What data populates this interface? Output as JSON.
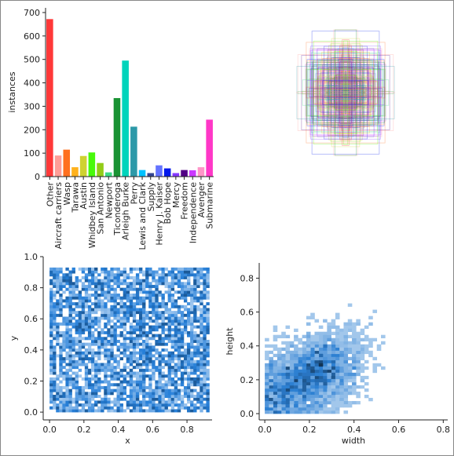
{
  "chart_data": [
    {
      "type": "bar",
      "y_label": "instances",
      "categories": [
        "Other",
        "Aircraft carriers",
        "Wasp",
        "Tarawa",
        "Austin",
        "Whidbey Island",
        "San Antonio",
        "Newport",
        "Ticonderoga",
        "Arleigh Burke",
        "Perry",
        "Lewis and Clark",
        "Supply",
        "Henry J. Kaiser",
        "Bob Hope",
        "Mercy",
        "Freedom",
        "Independence",
        "Avenger",
        "Submarine"
      ],
      "values": [
        672,
        90,
        115,
        40,
        88,
        103,
        58,
        18,
        335,
        495,
        213,
        28,
        15,
        48,
        35,
        15,
        28,
        27,
        40,
        243
      ],
      "colors": [
        "#ff3838",
        "#ff9d97",
        "#ff701f",
        "#ffb21d",
        "#cfd231",
        "#48f90a",
        "#92cc17",
        "#3ddb86",
        "#1a9334",
        "#00d4bb",
        "#2c99a8",
        "#00c2ff",
        "#344593",
        "#6473ff",
        "#0018ec",
        "#8438ff",
        "#520085",
        "#cb38ff",
        "#ff95c8",
        "#ff37c7"
      ],
      "ylim": [
        0,
        720
      ],
      "yticks": [
        0,
        100,
        200,
        300,
        400,
        500,
        600,
        700
      ]
    },
    {
      "type": "hist2d",
      "x_label": "x",
      "y_label": "y",
      "xlim": [
        -0.037,
        0.946
      ],
      "ylim": [
        -0.05,
        1.0
      ],
      "xticks": [
        {
          "value": 0,
          "label": "0.0"
        },
        {
          "value": 0.2,
          "label": "0.2"
        },
        {
          "value": 0.4,
          "label": "0.4"
        },
        {
          "value": 0.6,
          "label": "0.6"
        },
        {
          "value": 0.8,
          "label": "0.8"
        }
      ],
      "yticks": [
        {
          "value": 0,
          "label": "0.0"
        },
        {
          "value": 0.2,
          "label": "0.2"
        },
        {
          "value": 0.4,
          "label": "0.4"
        },
        {
          "value": 0.6,
          "label": "0.6"
        },
        {
          "value": 0.8,
          "label": "0.8"
        },
        {
          "value": 1,
          "label": "1.0"
        }
      ]
    },
    {
      "type": "hist2d",
      "x_label": "width",
      "y_label": "height",
      "xlim": [
        -0.025,
        0.82
      ],
      "ylim": [
        -0.037,
        0.89
      ],
      "xticks": [
        {
          "value": 0,
          "label": "0.0"
        },
        {
          "value": 0.2,
          "label": "0.2"
        },
        {
          "value": 0.4,
          "label": "0.4"
        },
        {
          "value": 0.6,
          "label": "0.6"
        },
        {
          "value": 0.8,
          "label": "0.8"
        }
      ],
      "yticks": [
        {
          "value": 0,
          "label": "0.0"
        },
        {
          "value": 0.2,
          "label": "0.2"
        },
        {
          "value": 0.4,
          "label": "0.4"
        },
        {
          "value": 0.6,
          "label": "0.6"
        },
        {
          "value": 0.8,
          "label": "0.8"
        }
      ]
    }
  ]
}
